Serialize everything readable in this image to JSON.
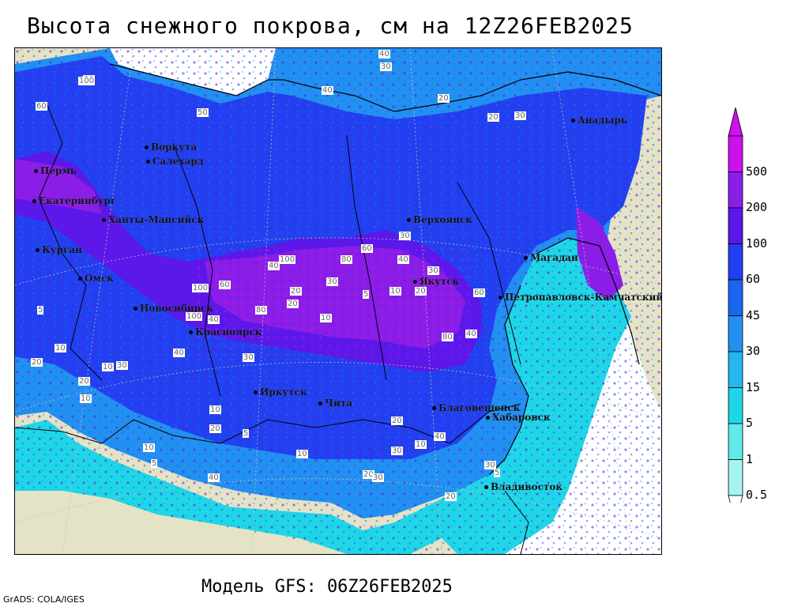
{
  "title": "Высота снежного покрова, см на 12Z26FEB2025",
  "footer": "Модель GFS: 06Z26FEB2025",
  "credit": "GrADS: COLA/IGES",
  "legend": {
    "levels": [
      "500",
      "200",
      "100",
      "60",
      "45",
      "30",
      "15",
      "5",
      "1",
      "0.5"
    ],
    "colors": [
      "#cc10ee",
      "#8a1ee6",
      "#5b18e8",
      "#2240f0",
      "#1a66f0",
      "#2290f0",
      "#25b5ef",
      "#1fd6e6",
      "#60eae8",
      "#a6f3f3"
    ]
  },
  "colors": {
    "land_bare": "#e4e3c6",
    "sea": "#ffffff",
    "deep_snow": "#8a1ee6",
    "mid_snow": "#2240f0",
    "light_snow": "#2290f0"
  },
  "cities": [
    {
      "name": "Анадырь"
    },
    {
      "name": "Воркута"
    },
    {
      "name": "Салехард"
    },
    {
      "name": "Пермь"
    },
    {
      "name": "Екатеринбург"
    },
    {
      "name": "Ханты-Мансийск"
    },
    {
      "name": "Курган"
    },
    {
      "name": "Омск"
    },
    {
      "name": "Новосибирск"
    },
    {
      "name": "Красноярск"
    },
    {
      "name": "Иркутск"
    },
    {
      "name": "Чита"
    },
    {
      "name": "Верхоянск"
    },
    {
      "name": "Якутск"
    },
    {
      "name": "Магадан"
    },
    {
      "name": "Петропавловск-Камчатский"
    },
    {
      "name": "Благовещенск"
    },
    {
      "name": "Хабаровск"
    },
    {
      "name": "Владивосток"
    }
  ],
  "contour_labels": [
    "40",
    "30",
    "20",
    "20",
    "30",
    "40",
    "50",
    "60",
    "80",
    "100",
    "100",
    "80",
    "60",
    "40",
    "30",
    "20",
    "10",
    "5",
    "10",
    "20",
    "30",
    "40",
    "60",
    "80",
    "100",
    "100",
    "80",
    "60",
    "40",
    "30",
    "20",
    "10",
    "5",
    "10",
    "20",
    "30",
    "40",
    "40",
    "30",
    "20",
    "10",
    "5",
    "10",
    "20",
    "30",
    "40",
    "20",
    "10",
    "5",
    "10",
    "20",
    "30",
    "40",
    "30",
    "20",
    "10",
    "5"
  ]
}
